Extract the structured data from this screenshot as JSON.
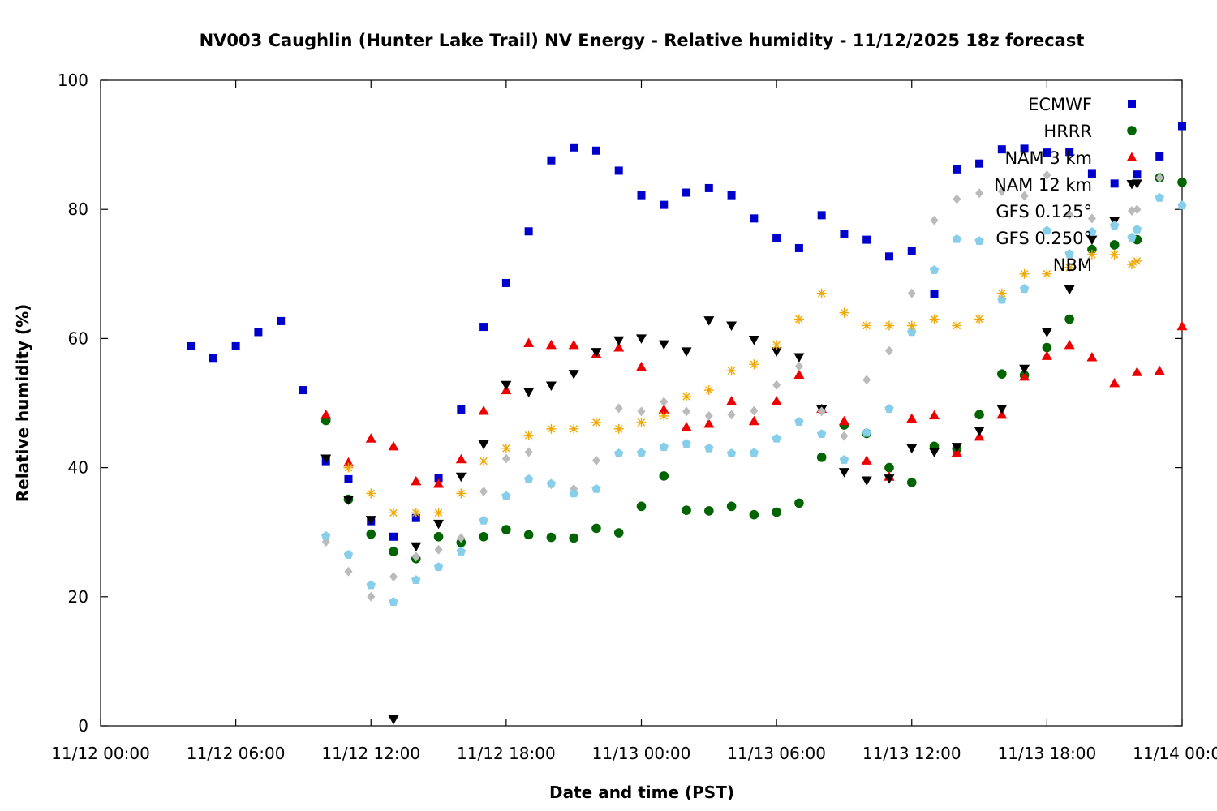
{
  "chart_data": {
    "type": "scatter",
    "title": "NV003 Caughlin (Hunter Lake Trail) NV Energy - Relative humidity - 11/12/2025 18z forecast",
    "xlabel": "Date and time (PST)",
    "ylabel": "Relative humidity (%)",
    "xlim": [
      "11/12 00:00",
      "11/14 00:00"
    ],
    "ylim": [
      0,
      100
    ],
    "x_ticks": [
      "11/12 00:00",
      "11/12 06:00",
      "11/12 12:00",
      "11/12 18:00",
      "11/13 00:00",
      "11/13 06:00",
      "11/13 12:00",
      "11/13 18:00",
      "11/14 00:00"
    ],
    "y_ticks": [
      "0",
      "20",
      "40",
      "60",
      "80",
      "100"
    ],
    "grid": false,
    "legend_position": "top-right",
    "series": [
      {
        "name": "ECMWF",
        "marker": "square",
        "color": "#0000cc",
        "x": [
          "11/12 04:00",
          "11/12 05:00",
          "11/12 06:00",
          "11/12 07:00",
          "11/12 08:00",
          "11/12 09:00",
          "11/12 10:00",
          "11/12 11:00",
          "11/12 12:00",
          "11/12 13:00",
          "11/12 14:00",
          "11/12 15:00",
          "11/12 16:00",
          "11/12 17:00",
          "11/12 18:00",
          "11/12 19:00",
          "11/12 20:00",
          "11/12 21:00",
          "11/12 22:00",
          "11/12 23:00",
          "11/13 00:00",
          "11/13 01:00",
          "11/13 02:00",
          "11/13 03:00",
          "11/13 04:00",
          "11/13 05:00",
          "11/13 06:00",
          "11/13 07:00",
          "11/13 08:00",
          "11/13 09:00",
          "11/13 10:00",
          "11/13 11:00",
          "11/13 12:00",
          "11/13 13:00",
          "11/13 14:00",
          "11/13 15:00",
          "11/13 16:00",
          "11/13 17:00",
          "11/13 18:00",
          "11/13 19:00",
          "11/13 20:00",
          "11/13 21:00",
          "11/13 22:00",
          "11/13 23:00",
          "11/14 00:00"
        ],
        "y": [
          58.8,
          57,
          58.8,
          61,
          62.7,
          52,
          41,
          38.2,
          31.7,
          29.3,
          32.2,
          38.4,
          49,
          61.8,
          68.6,
          76.6,
          87.6,
          89.6,
          89.1,
          86,
          82.2,
          80.7,
          82.6,
          83.3,
          82.2,
          78.6,
          75.5,
          74,
          79.1,
          76.2,
          75.3,
          72.7,
          73.6,
          66.9,
          86.2,
          87.1,
          89.3,
          89.4,
          88.8,
          88.9,
          85.5,
          84,
          85.4,
          88.2,
          92.9
        ]
      },
      {
        "name": "HRRR",
        "marker": "circle",
        "color": "#006400",
        "x": [
          "11/12 10:00",
          "11/12 11:00",
          "11/12 12:00",
          "11/12 13:00",
          "11/12 14:00",
          "11/12 15:00",
          "11/12 16:00",
          "11/12 17:00",
          "11/12 18:00",
          "11/12 19:00",
          "11/12 20:00",
          "11/12 21:00",
          "11/12 22:00",
          "11/12 23:00",
          "11/13 00:00",
          "11/13 01:00",
          "11/13 02:00",
          "11/13 03:00",
          "11/13 04:00",
          "11/13 05:00",
          "11/13 06:00",
          "11/13 07:00",
          "11/13 08:00",
          "11/13 09:00",
          "11/13 10:00",
          "11/13 11:00",
          "11/13 12:00",
          "11/13 13:00",
          "11/13 14:00",
          "11/13 15:00",
          "11/13 16:00",
          "11/13 17:00",
          "11/13 18:00",
          "11/13 19:00",
          "11/13 20:00",
          "11/13 21:00",
          "11/13 22:00",
          "11/13 23:00",
          "11/14 00:00"
        ],
        "y": [
          47.3,
          35.1,
          29.7,
          27,
          25.9,
          29.3,
          28.4,
          29.3,
          30.4,
          29.6,
          29.2,
          29.1,
          30.6,
          29.9,
          34,
          38.7,
          33.4,
          33.3,
          34,
          32.7,
          33.1,
          34.5,
          41.6,
          46.6,
          45.3,
          40,
          37.7,
          43.3,
          42.9,
          48.2,
          54.5,
          54.3,
          58.6,
          63,
          73.8,
          74.5,
          75.3,
          84.9,
          84.2
        ]
      },
      {
        "name": "NAM 3 km",
        "marker": "triangle-up",
        "color": "#ee0000",
        "x": [
          "11/12 10:00",
          "11/12 11:00",
          "11/12 12:00",
          "11/12 13:00",
          "11/12 14:00",
          "11/12 15:00",
          "11/12 16:00",
          "11/12 17:00",
          "11/12 18:00",
          "11/12 19:00",
          "11/12 20:00",
          "11/12 21:00",
          "11/12 22:00",
          "11/12 23:00",
          "11/13 00:00",
          "11/13 01:00",
          "11/13 02:00",
          "11/13 03:00",
          "11/13 04:00",
          "11/13 05:00",
          "11/13 06:00",
          "11/13 07:00",
          "11/13 08:00",
          "11/13 09:00",
          "11/13 10:00",
          "11/13 11:00",
          "11/13 12:00",
          "11/13 13:00",
          "11/13 14:00",
          "11/13 15:00",
          "11/13 16:00",
          "11/13 17:00",
          "11/13 18:00",
          "11/13 19:00",
          "11/13 20:00",
          "11/13 21:00",
          "11/13 22:00",
          "11/13 23:00",
          "11/14 00:00"
        ],
        "y": [
          48.2,
          40.8,
          44.5,
          43.3,
          37.9,
          37.5,
          41.3,
          48.8,
          52,
          59.3,
          59,
          59,
          57.6,
          58.6,
          55.6,
          49,
          46.3,
          46.8,
          50.3,
          47.2,
          50.3,
          54.4,
          49.1,
          47.2,
          41.1,
          38.6,
          47.6,
          48.1,
          42.3,
          44.8,
          48.2,
          54.1,
          57.3,
          59,
          57.1,
          53.1,
          54.8,
          55,
          61.9
        ]
      },
      {
        "name": "NAM 12 km",
        "marker": "triangle-down",
        "color": "#000000",
        "x": [
          "11/12 10:00",
          "11/12 11:00",
          "11/12 12:00",
          "11/12 13:00",
          "11/12 14:00",
          "11/12 15:00",
          "11/12 16:00",
          "11/12 17:00",
          "11/12 18:00",
          "11/12 19:00",
          "11/12 20:00",
          "11/12 21:00",
          "11/12 22:00",
          "11/12 23:00",
          "11/13 00:00",
          "11/13 01:00",
          "11/13 02:00",
          "11/13 03:00",
          "11/13 04:00",
          "11/13 05:00",
          "11/13 06:00",
          "11/13 07:00",
          "11/13 08:00",
          "11/13 09:00",
          "11/13 10:00",
          "11/13 11:00",
          "11/13 12:00",
          "11/13 13:00",
          "11/13 14:00",
          "11/13 15:00",
          "11/13 16:00",
          "11/13 17:00",
          "11/13 18:00",
          "11/13 19:00",
          "11/13 20:00",
          "11/13 21:00",
          "11/13 22:00"
        ],
        "y": [
          41.4,
          35,
          31.9,
          1,
          27.8,
          31.3,
          38.6,
          43.6,
          52.8,
          51.7,
          52.7,
          54.5,
          57.9,
          59.7,
          60,
          59.1,
          58,
          62.8,
          62,
          59.8,
          58,
          57.1,
          49,
          39.3,
          38,
          38.3,
          43,
          42.4,
          43.2,
          45.7,
          49.1,
          55.3,
          61,
          67.6,
          75.3,
          78.2,
          84
        ]
      },
      {
        "name": "GFS 0.125°",
        "marker": "diamond",
        "color": "#bbbbbb",
        "x": [
          "11/12 10:00",
          "11/12 11:00",
          "11/12 12:00",
          "11/12 13:00",
          "11/12 14:00",
          "11/12 15:00",
          "11/12 16:00",
          "11/12 17:00",
          "11/12 18:00",
          "11/12 19:00",
          "11/12 20:00",
          "11/12 21:00",
          "11/12 22:00",
          "11/12 23:00",
          "11/13 00:00",
          "11/13 01:00",
          "11/13 02:00",
          "11/13 03:00",
          "11/13 04:00",
          "11/13 05:00",
          "11/13 06:00",
          "11/13 07:00",
          "11/13 08:00",
          "11/13 09:00",
          "11/13 10:00",
          "11/13 11:00",
          "11/13 12:00",
          "11/13 13:00",
          "11/13 14:00",
          "11/13 15:00",
          "11/13 16:00",
          "11/13 17:00",
          "11/13 18:00",
          "11/13 19:00",
          "11/13 20:00",
          "11/13 21:00",
          "11/13 22:00",
          "11/13 23:00"
        ],
        "y": [
          28.5,
          23.9,
          20,
          23.1,
          26.2,
          27.3,
          29.1,
          36.3,
          41.4,
          42.4,
          37.4,
          36.7,
          41.1,
          49.2,
          48.7,
          50.2,
          48.7,
          48,
          48.2,
          48.8,
          52.8,
          55.7,
          48.7,
          44.9,
          53.6,
          58.1,
          67,
          78.3,
          81.6,
          82.5,
          82.8,
          82.1,
          85.3,
          79.2,
          78.6,
          77.5,
          80,
          84.9
        ]
      },
      {
        "name": "GFS 0.250°",
        "marker": "pentagon",
        "color": "#87ceeb",
        "x": [
          "11/12 10:00",
          "11/12 11:00",
          "11/12 12:00",
          "11/12 13:00",
          "11/12 14:00",
          "11/12 15:00",
          "11/12 16:00",
          "11/12 17:00",
          "11/12 18:00",
          "11/12 19:00",
          "11/12 20:00",
          "11/12 21:00",
          "11/12 22:00",
          "11/12 23:00",
          "11/13 00:00",
          "11/13 01:00",
          "11/13 02:00",
          "11/13 03:00",
          "11/13 04:00",
          "11/13 05:00",
          "11/13 06:00",
          "11/13 07:00",
          "11/13 08:00",
          "11/13 09:00",
          "11/13 10:00",
          "11/13 11:00",
          "11/13 12:00",
          "11/13 13:00",
          "11/13 14:00",
          "11/13 15:00",
          "11/13 16:00",
          "11/13 17:00",
          "11/13 18:00",
          "11/13 19:00",
          "11/13 20:00",
          "11/13 21:00",
          "11/13 22:00",
          "11/13 23:00",
          "11/14 00:00"
        ],
        "y": [
          29.4,
          26.5,
          21.8,
          19.2,
          22.6,
          24.6,
          27,
          31.8,
          35.6,
          38.2,
          37.5,
          36,
          36.7,
          42.2,
          42.3,
          43.2,
          43.7,
          43,
          42.2,
          42.3,
          44.5,
          47.1,
          45.2,
          41.2,
          45.4,
          49.1,
          61,
          70.6,
          75.4,
          75.1,
          66,
          67.7,
          76.7,
          73.1,
          76.5,
          77.5,
          76.9,
          81.8,
          80.6
        ]
      },
      {
        "name": "NBM",
        "marker": "asterisk",
        "color": "#f0a800",
        "x": [
          "11/12 11:00",
          "11/12 12:00",
          "11/12 13:00",
          "11/12 14:00",
          "11/12 15:00",
          "11/12 16:00",
          "11/12 17:00",
          "11/12 18:00",
          "11/12 19:00",
          "11/12 20:00",
          "11/12 21:00",
          "11/12 22:00",
          "11/12 23:00",
          "11/13 00:00",
          "11/13 01:00",
          "11/13 02:00",
          "11/13 03:00",
          "11/13 04:00",
          "11/13 05:00",
          "11/13 06:00",
          "11/13 07:00",
          "11/13 08:00",
          "11/13 09:00",
          "11/13 10:00",
          "11/13 11:00",
          "11/13 12:00",
          "11/13 13:00",
          "11/13 14:00",
          "11/13 15:00",
          "11/13 16:00",
          "11/13 17:00",
          "11/13 18:00",
          "11/13 19:00",
          "11/13 20:00",
          "11/13 21:00",
          "11/13 22:00"
        ],
        "y": [
          40,
          36,
          33,
          33,
          33,
          36,
          41,
          43,
          45,
          46,
          46,
          47,
          46,
          47,
          48,
          51,
          52,
          55,
          56,
          59,
          63,
          67,
          64,
          62,
          62,
          62,
          63,
          62,
          63,
          67,
          70,
          70,
          71,
          73,
          73,
          72
        ]
      }
    ]
  }
}
